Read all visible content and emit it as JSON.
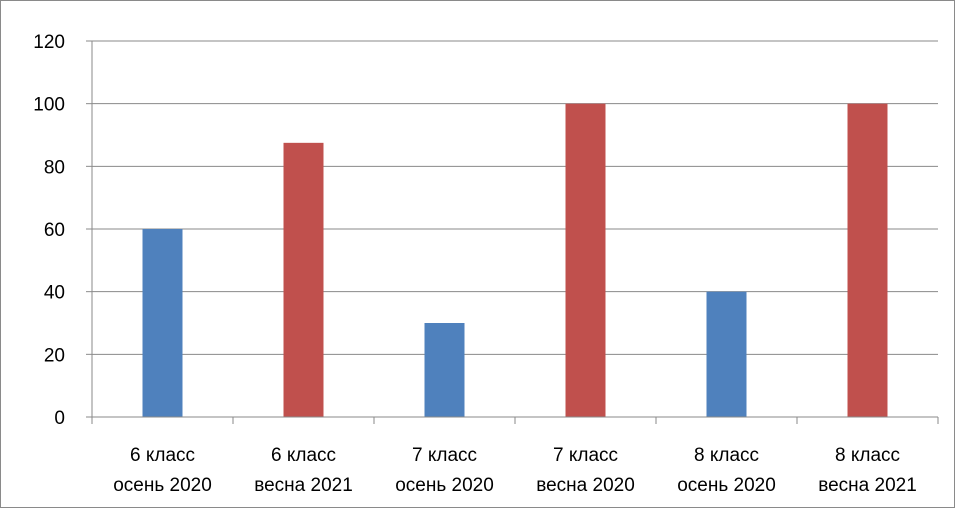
{
  "chart_data": {
    "type": "bar",
    "categories": [
      [
        "6 класс",
        "осень 2020"
      ],
      [
        "6 класс",
        "весна 2021"
      ],
      [
        "7 класс",
        "осень 2020"
      ],
      [
        "7 класс",
        "весна 2020"
      ],
      [
        "8 класс",
        "осень 2020"
      ],
      [
        "8 класс",
        "весна 2021"
      ]
    ],
    "values": [
      60,
      87.5,
      30,
      100,
      40,
      100
    ],
    "bar_colors": [
      "#4f81bd",
      "#c0504d",
      "#4f81bd",
      "#c0504d",
      "#4f81bd",
      "#c0504d"
    ],
    "ylim": [
      0,
      120
    ],
    "yticks": [
      0,
      20,
      40,
      60,
      80,
      100,
      120
    ],
    "grid": true,
    "legend": "none",
    "title": "",
    "xlabel": "",
    "ylabel": ""
  }
}
